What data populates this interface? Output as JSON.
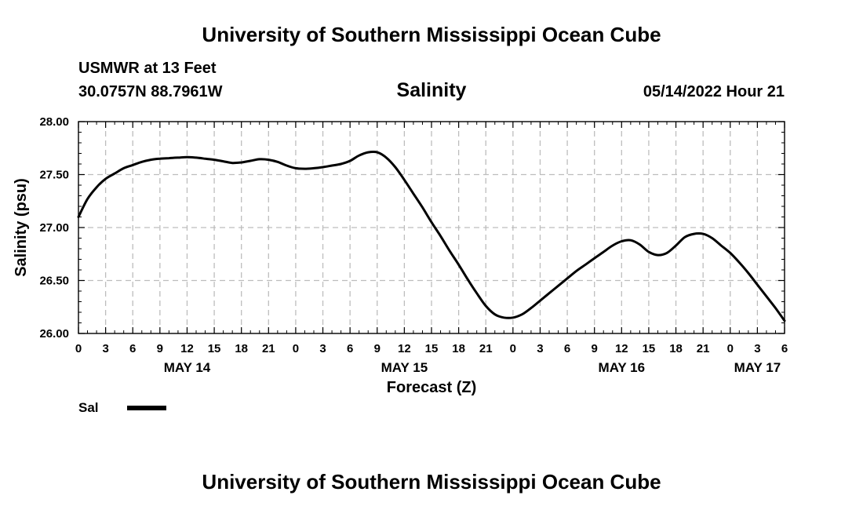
{
  "header": {
    "title": "University of Southern Mississippi Ocean Cube",
    "station": "USMWR at 13 Feet",
    "coords": "30.0757N  88.7961W",
    "variable": "Salinity",
    "datetime": "05/14/2022 Hour 21"
  },
  "footer": {
    "title": "University of Southern Mississippi Ocean Cube"
  },
  "chart_data": {
    "type": "line",
    "title": "Salinity",
    "xlabel": "Forecast (Z)",
    "ylabel": "Salinity (psu)",
    "ylim": [
      26.0,
      28.0
    ],
    "xlim_hours": [
      0,
      78
    ],
    "yticks": [
      "26.00",
      "26.50",
      "27.00",
      "27.50",
      "28.00"
    ],
    "ytick_values": [
      26.0,
      26.5,
      27.0,
      27.5,
      28.0
    ],
    "xtick_labels": [
      "0",
      "3",
      "6",
      "9",
      "12",
      "15",
      "18",
      "21",
      "0",
      "3",
      "6",
      "9",
      "12",
      "15",
      "18",
      "21",
      "0",
      "3",
      "6",
      "9",
      "12",
      "15",
      "18",
      "21",
      "0",
      "3",
      "6"
    ],
    "day_labels": [
      {
        "label": "MAY 14",
        "hour": 12
      },
      {
        "label": "MAY 15",
        "hour": 36
      },
      {
        "label": "MAY 16",
        "hour": 60
      },
      {
        "label": "MAY 17",
        "hour": 75
      }
    ],
    "legend": [
      {
        "name": "Sal",
        "color": "#000000"
      }
    ],
    "grid": true,
    "series": [
      {
        "name": "Sal",
        "color": "#000000",
        "x": [
          0,
          1,
          2,
          3,
          4,
          5,
          6,
          7,
          8,
          9,
          10,
          11,
          12,
          13,
          14,
          15,
          16,
          17,
          18,
          19,
          20,
          21,
          22,
          23,
          24,
          25,
          26,
          27,
          28,
          29,
          30,
          31,
          32,
          33,
          34,
          35,
          36,
          37,
          38,
          39,
          40,
          41,
          42,
          43,
          44,
          45,
          46,
          47,
          48,
          49,
          50,
          51,
          52,
          53,
          54,
          55,
          56,
          57,
          58,
          59,
          60,
          61,
          62,
          63,
          64,
          65,
          66,
          67,
          68,
          69,
          70,
          71,
          72,
          73,
          74,
          75,
          76,
          77,
          78
        ],
        "values": [
          27.1,
          27.27,
          27.38,
          27.46,
          27.51,
          27.56,
          27.59,
          27.62,
          27.64,
          27.65,
          27.655,
          27.66,
          27.665,
          27.66,
          27.65,
          27.64,
          27.625,
          27.61,
          27.615,
          27.63,
          27.645,
          27.64,
          27.62,
          27.585,
          27.56,
          27.555,
          27.56,
          27.57,
          27.585,
          27.6,
          27.63,
          27.68,
          27.71,
          27.71,
          27.66,
          27.57,
          27.45,
          27.32,
          27.19,
          27.05,
          26.92,
          26.78,
          26.65,
          26.51,
          26.38,
          26.26,
          26.18,
          26.15,
          26.15,
          26.18,
          26.24,
          26.31,
          26.38,
          26.45,
          26.52,
          26.59,
          26.65,
          26.71,
          26.77,
          26.83,
          26.87,
          26.88,
          26.84,
          26.77,
          26.74,
          26.76,
          26.83,
          26.91,
          26.94,
          26.94,
          26.9,
          26.83,
          26.76,
          26.67,
          26.57,
          26.46,
          26.35,
          26.24,
          26.12
        ]
      }
    ]
  }
}
